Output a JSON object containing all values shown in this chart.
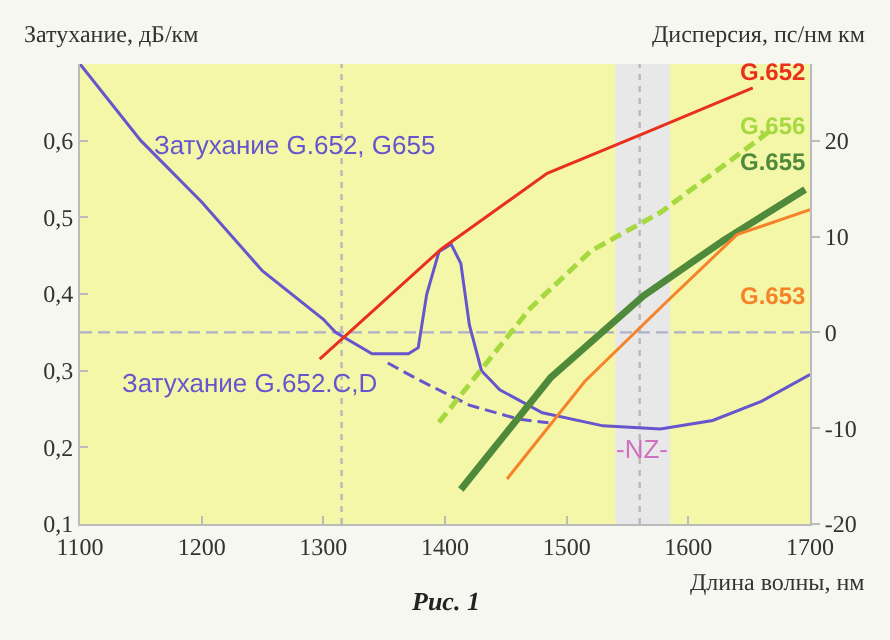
{
  "chart_data": {
    "type": "line",
    "annotations": [
      "Рис. 1"
    ],
    "xlabel": "Длина волны, нм",
    "ylabel": "Затухание, дБ/км",
    "y2label": "Дисперсия, пс/нм км",
    "xlim": [
      1100,
      1700
    ],
    "xticks": [
      1100,
      1200,
      1300,
      1400,
      1500,
      1600,
      1700
    ],
    "ylim": [
      0.1,
      0.7
    ],
    "yticks": [
      {
        "value": 0.1,
        "label": "0,1"
      },
      {
        "value": 0.2,
        "label": "0,2"
      },
      {
        "value": 0.3,
        "label": "0,3"
      },
      {
        "value": 0.4,
        "label": "0,4"
      },
      {
        "value": 0.5,
        "label": "0,5"
      },
      {
        "value": 0.6,
        "label": "0,6"
      }
    ],
    "y2lim": [
      -20,
      28
    ],
    "y2ticks": [
      -20,
      -10,
      0,
      10,
      20
    ],
    "grid": false,
    "legend": false,
    "marker": "none",
    "ref_lines": [
      {
        "axis": "y",
        "value": 0.35,
        "color": "#b0b0c8",
        "line_style": "dashed"
      },
      {
        "axis": "x",
        "value": 1315,
        "color": "#b8b8b8",
        "line_style": "dotted"
      },
      {
        "axis": "x",
        "value": 1560,
        "color": "#b8b8b8",
        "line_style": "dotted"
      }
    ],
    "bands": [
      {
        "axis": "x",
        "from": 1540,
        "to": 1585,
        "label": "-NZ-",
        "color": "#e8e8e8"
      }
    ],
    "series": [
      {
        "name": "Затухание G.652, G655",
        "color": "#6655cc",
        "line_style": "solid",
        "x": [
          1100,
          1150,
          1200,
          1250,
          1300,
          1310,
          1340,
          1370,
          1378,
          1385,
          1395,
          1405,
          1413,
          1420,
          1430,
          1445,
          1480,
          1530,
          1577,
          1620,
          1660,
          1700
        ],
        "values": [
          0.7,
          0.6,
          0.52,
          0.43,
          0.367,
          0.35,
          0.322,
          0.322,
          0.33,
          0.4,
          0.455,
          0.465,
          0.44,
          0.36,
          0.3,
          0.275,
          0.245,
          0.228,
          0.224,
          0.235,
          0.26,
          0.295
        ]
      },
      {
        "name": "Затухание G.652.C,D",
        "color": "#6655cc",
        "line_style": "dashed",
        "x": [
          1353,
          1376,
          1420,
          1460,
          1485
        ],
        "values": [
          0.31,
          0.29,
          0.255,
          0.237,
          0.232
        ]
      },
      {
        "name": "G.652",
        "axis": "y2",
        "color": "#e8301c",
        "line_style": "solid",
        "x": [
          1297,
          1397,
          1484,
          1566,
          1653
        ],
        "values": [
          -2.8,
          8.7,
          16.6,
          20.9,
          25.5
        ]
      },
      {
        "name": "G.656",
        "axis": "y2",
        "color": "#a6d840",
        "line_style": "dashed",
        "x": [
          1395,
          1470,
          1520,
          1577,
          1666
        ],
        "values": [
          -9.4,
          2.5,
          8.5,
          12.5,
          20.9
        ]
      },
      {
        "name": "G.655",
        "axis": "y2",
        "color": "#4e8a3a",
        "line_style": "solid",
        "x": [
          1413,
          1487,
          1563,
          1629,
          1696
        ],
        "values": [
          -16.4,
          -4.7,
          3.8,
          9.6,
          14.9
        ]
      },
      {
        "name": "G.653",
        "axis": "y2",
        "color": "#f5832a",
        "line_style": "solid",
        "x": [
          1451,
          1515,
          1579,
          1640,
          1700
        ],
        "values": [
          -15.3,
          -5.1,
          2.8,
          10.2,
          12.8
        ]
      }
    ]
  }
}
